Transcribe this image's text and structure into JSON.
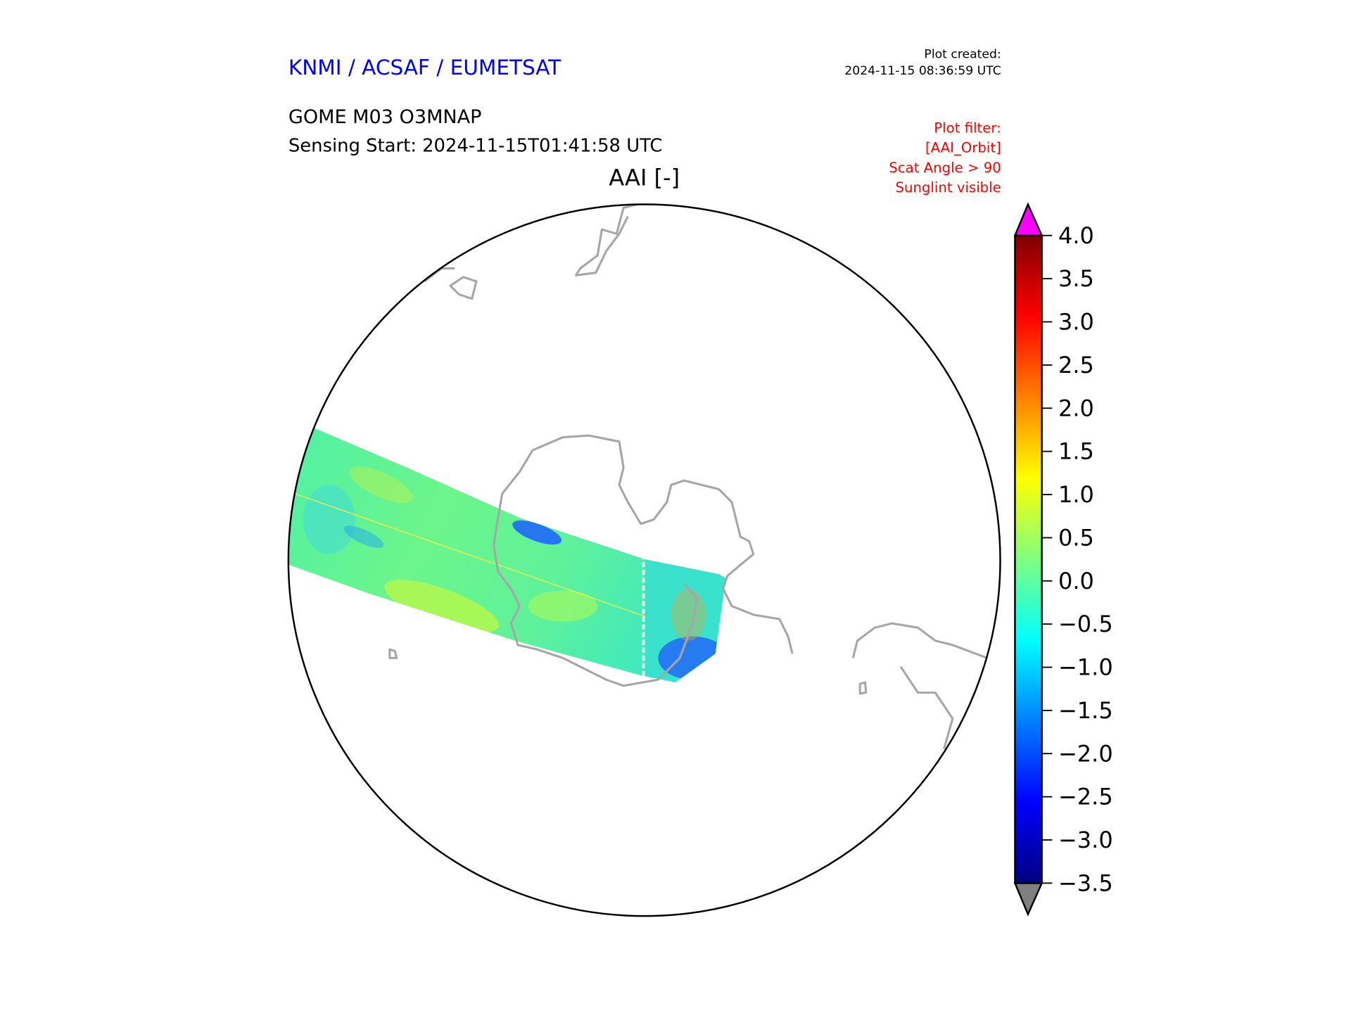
{
  "header": {
    "organization": "KNMI / ACSAF / EUMETSAT",
    "plot_created_label": "Plot created:",
    "plot_created_time": "2024-11-15 08:36:59 UTC",
    "product": "GOME M03 O3MNAP",
    "sensing_start": "Sensing Start: 2024-11-15T01:41:58 UTC",
    "variable_title": "AAI [-]"
  },
  "filter": {
    "lines": [
      "Plot filter:",
      "[AAI_Orbit]",
      "Scat Angle > 90",
      "Sunglint visible"
    ]
  },
  "colors": {
    "organization": "#0000ff",
    "filter": "#ff0000",
    "coastline": "#a6a6a6",
    "over_extension": "#ff00ff",
    "under_extension": "#808080"
  },
  "colorbar": {
    "min": -3.5,
    "max": 4.0,
    "colormap": "jet",
    "ticks": [
      "4.0",
      "3.5",
      "3.0",
      "2.5",
      "2.0",
      "1.5",
      "1.0",
      "0.5",
      "0.0",
      "−0.5",
      "−1.0",
      "−1.5",
      "−2.0",
      "−2.5",
      "−3.0",
      "−3.5"
    ],
    "tick_values": [
      4.0,
      3.5,
      3.0,
      2.5,
      2.0,
      1.5,
      1.0,
      0.5,
      0.0,
      -0.5,
      -1.0,
      -1.5,
      -2.0,
      -2.5,
      -3.0,
      -3.5
    ]
  }
}
